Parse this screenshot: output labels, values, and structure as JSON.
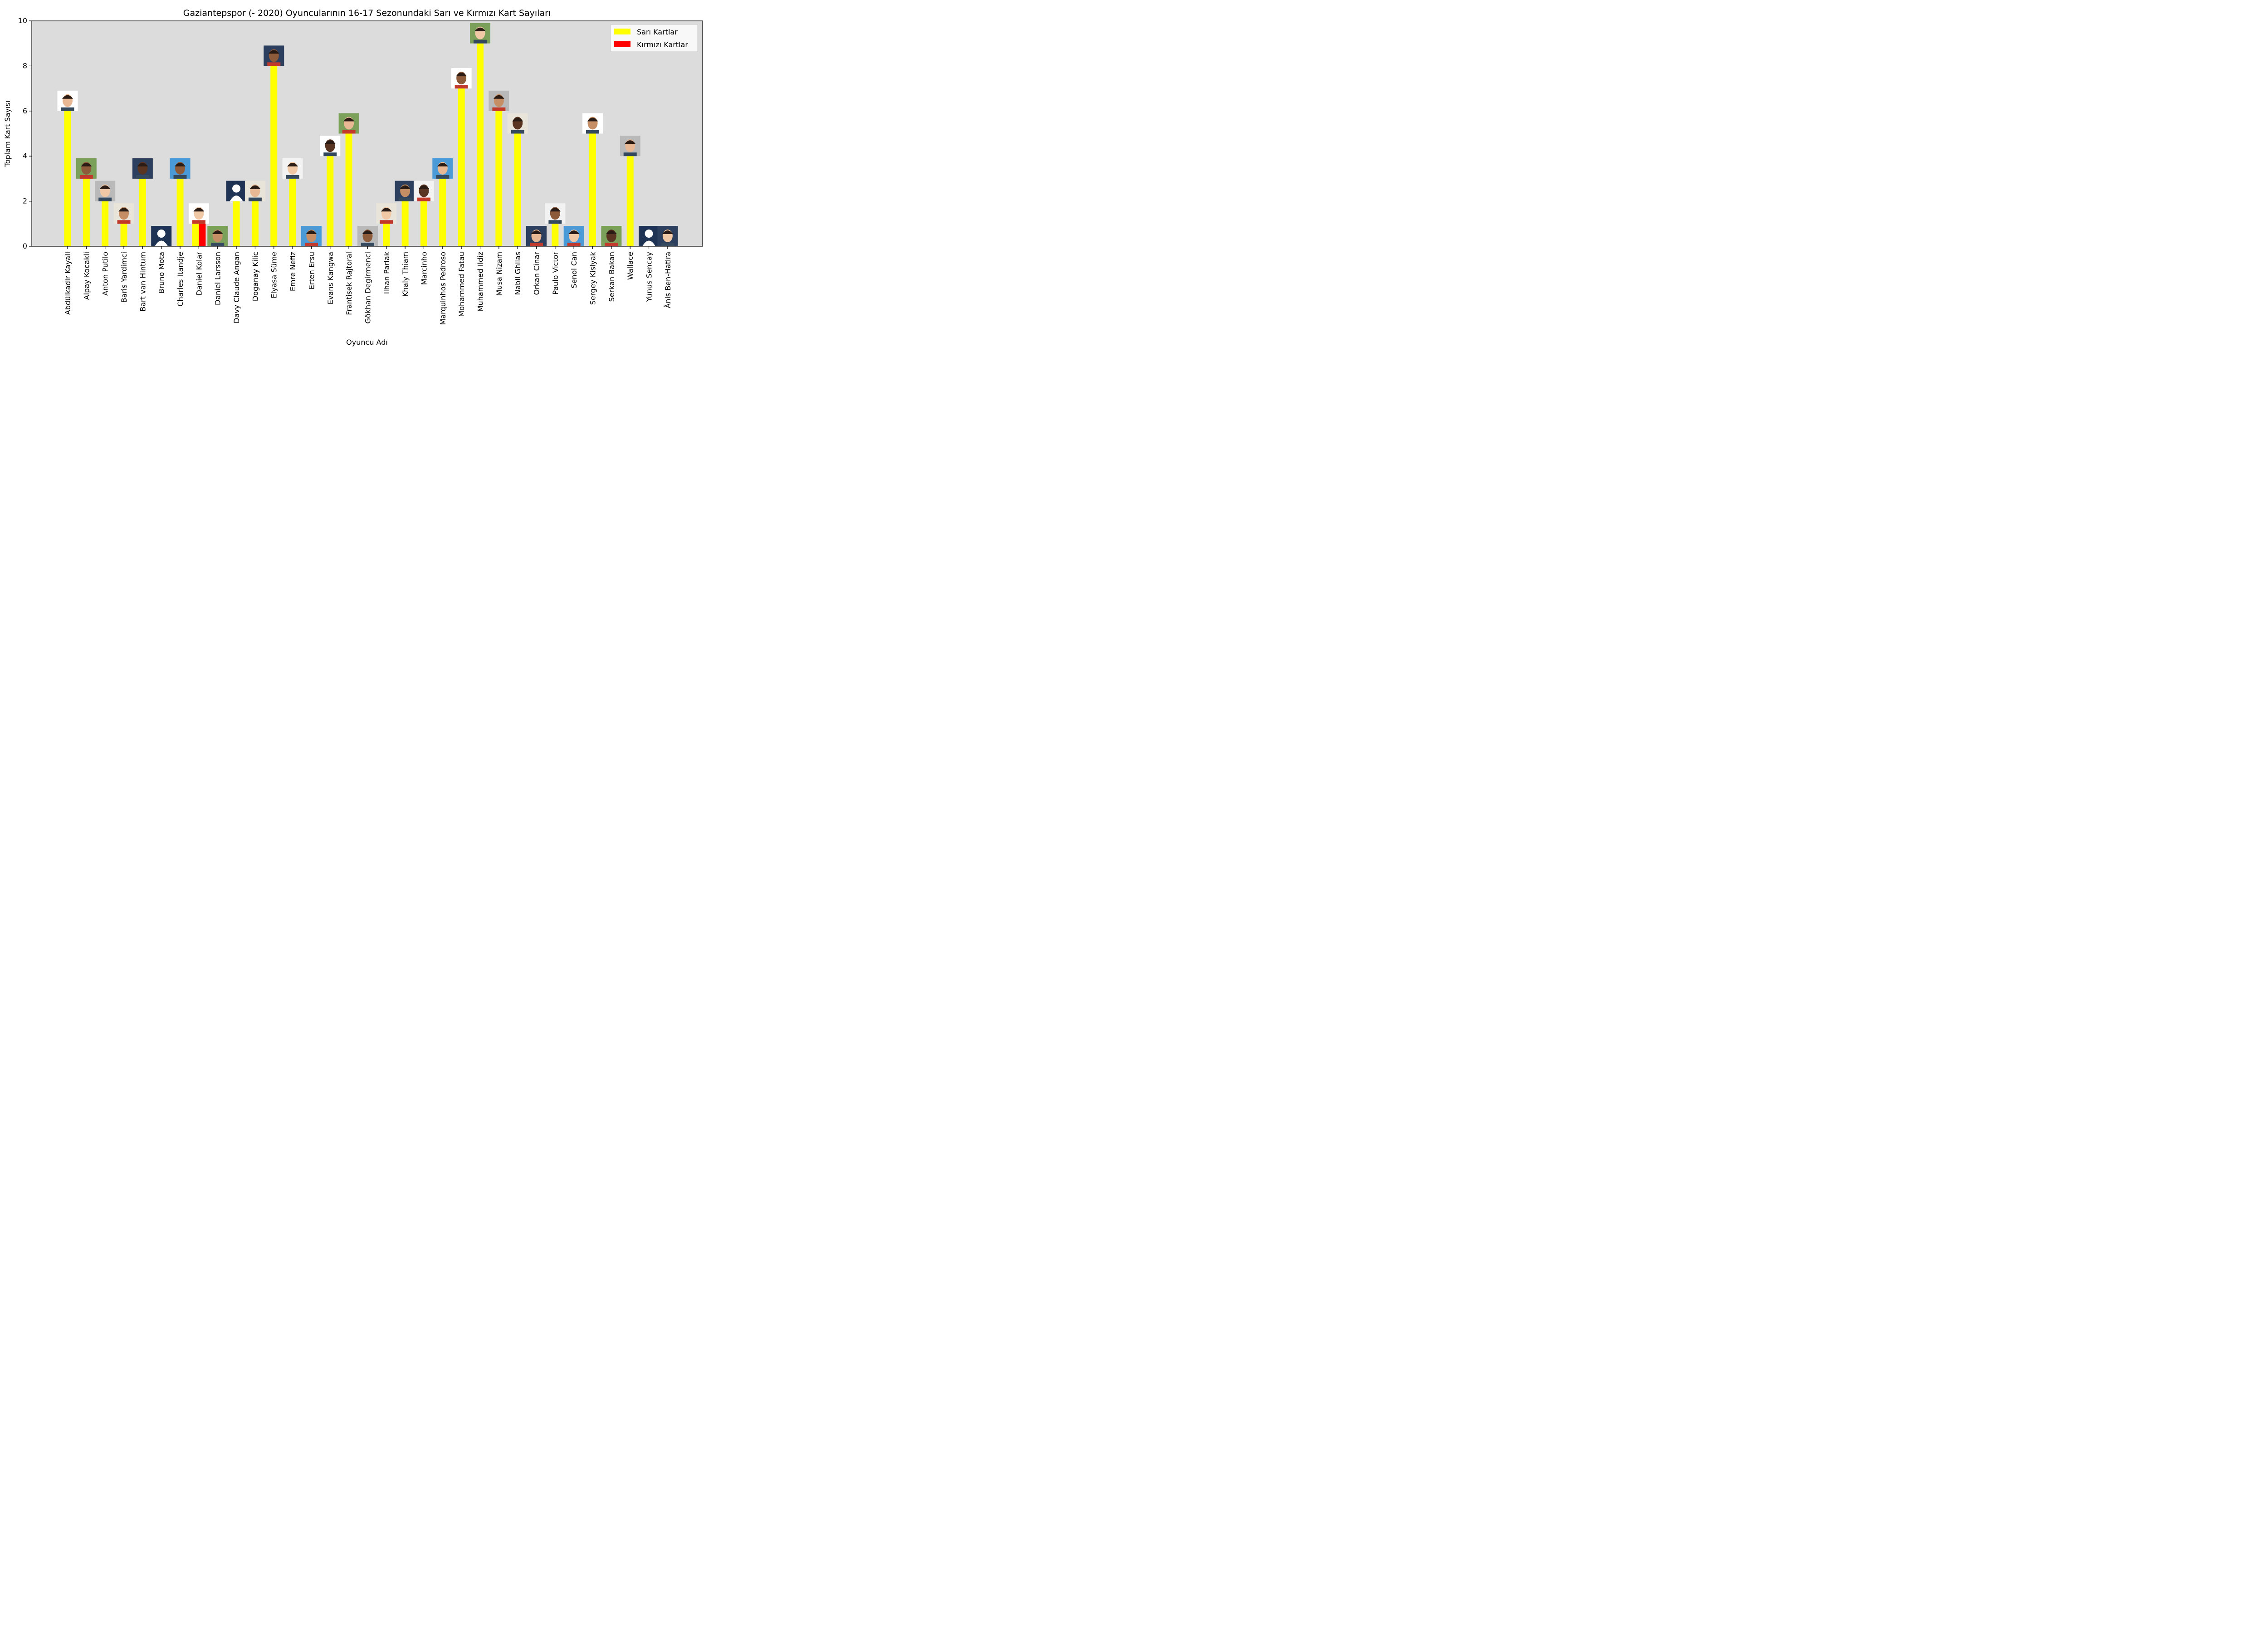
{
  "chart_data": {
    "type": "bar",
    "title": "Gaziantepspor (- 2020) Oyuncularının 16-17 Sezonundaki Sarı ve Kırmızı Kart Sayıları",
    "xlabel": "Oyuncu Adı",
    "ylabel": "Toplam Kart Sayısı",
    "ylim": [
      0,
      10
    ],
    "yticks": [
      "0",
      "2",
      "4",
      "6",
      "8",
      "10"
    ],
    "legend_position": "top-right",
    "grid": false,
    "background_color": "#dcdcdc",
    "categories": [
      "Abdülkadir Kayali",
      "Alpay Kocakli",
      "Anton Putilo",
      "Baris Yardimci",
      "Bart van Hintum",
      "Bruno Mota",
      "Charles Itandje",
      "Daniel Kolar",
      "Daniel Larsson",
      "Davy Claude Angan",
      "Doganay Kilic",
      "Elyasa Süme",
      "Emre Nefiz",
      "Erten Ersu",
      "Evans Kangwa",
      "Frantisek Rajtoral",
      "Gökhan Degirmenci",
      "Ilhan Parlak",
      "Khaly Thiam",
      "Marcinho",
      "Marquinhos Pedroso",
      "Mohammed Fatau",
      "Muhammed Ildiz",
      "Musa Nizam",
      "Nabil Ghilas",
      "Orkan Cinar",
      "Paulo Victor",
      "Senol Can",
      "Sergey Kislyak",
      "Serkan Bakan",
      "Wallace",
      "Yunus Sencay",
      "Änis Ben-Hatira"
    ],
    "series": [
      {
        "name": "Sarı Kartlar",
        "color": "#ffff00",
        "values": [
          6,
          3,
          2,
          1,
          3,
          0,
          3,
          1,
          0,
          2,
          2,
          8,
          3,
          0,
          4,
          5,
          0,
          1,
          2,
          2,
          3,
          7,
          9,
          6,
          5,
          0,
          1,
          0,
          5,
          0,
          4,
          0,
          0
        ]
      },
      {
        "name": "Kırmızı Kartlar",
        "color": "#ff0000",
        "values": [
          0,
          0,
          0,
          0,
          0,
          0,
          0,
          1,
          0,
          0,
          0,
          0,
          0,
          0,
          0,
          0,
          0,
          0,
          0,
          0,
          0,
          0,
          0,
          0,
          0,
          0,
          0,
          0,
          0,
          0,
          0,
          0,
          0
        ]
      }
    ]
  }
}
